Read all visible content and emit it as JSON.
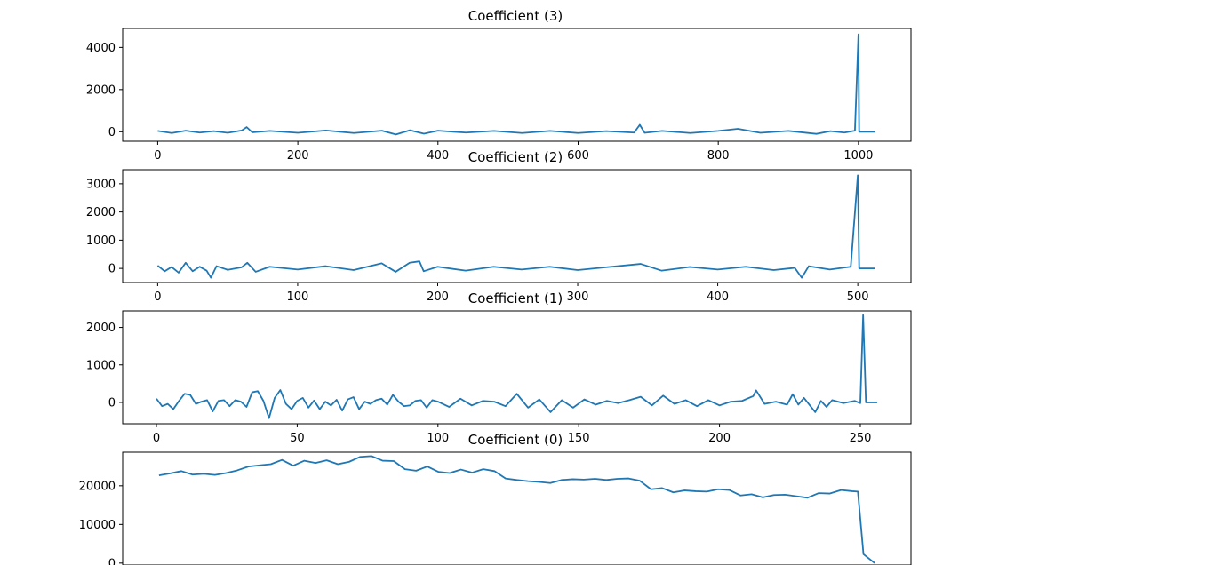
{
  "chart_data": [
    {
      "type": "line",
      "title": "Coefficient (3)",
      "xlabel": "",
      "ylabel": "",
      "xlim": [
        -50,
        1075
      ],
      "ylim": [
        -450,
        4900
      ],
      "xticks": [
        0,
        200,
        400,
        600,
        800,
        1000
      ],
      "xtick_labels": [
        "0",
        "200",
        "400",
        "600",
        "800",
        "1000"
      ],
      "yticks": [
        0,
        2000,
        4000
      ],
      "ytick_labels": [
        "0",
        "2000",
        "4000"
      ],
      "grid": false,
      "legend": "none",
      "series": [
        {
          "color": "#1f77b4",
          "x": [
            0,
            20,
            40,
            60,
            80,
            100,
            120,
            127,
            135,
            160,
            200,
            240,
            280,
            320,
            340,
            360,
            380,
            400,
            440,
            480,
            520,
            560,
            600,
            640,
            680,
            688,
            695,
            720,
            760,
            800,
            828,
            860,
            900,
            940,
            960,
            980,
            995,
            1000,
            1001,
            1005,
            1024
          ],
          "y": [
            40,
            -60,
            50,
            -40,
            30,
            -50,
            60,
            220,
            -30,
            40,
            -50,
            60,
            -60,
            50,
            -130,
            70,
            -90,
            50,
            -40,
            40,
            -60,
            40,
            -60,
            30,
            -40,
            330,
            -50,
            40,
            -60,
            40,
            140,
            -50,
            40,
            -100,
            30,
            -40,
            50,
            4620,
            0,
            0,
            0
          ]
        }
      ]
    },
    {
      "type": "line",
      "title": "Coefficient (2)",
      "xlabel": "",
      "ylabel": "",
      "xlim": [
        -25,
        538
      ],
      "ylim": [
        -500,
        3500
      ],
      "xticks": [
        0,
        100,
        200,
        300,
        400,
        500
      ],
      "xtick_labels": [
        "0",
        "100",
        "200",
        "300",
        "400",
        "500"
      ],
      "yticks": [
        0,
        1000,
        2000,
        3000
      ],
      "ytick_labels": [
        "0",
        "1000",
        "2000",
        "3000"
      ],
      "grid": false,
      "legend": "none",
      "series": [
        {
          "color": "#1f77b4",
          "x": [
            0,
            5,
            10,
            15,
            20,
            25,
            30,
            35,
            38,
            42,
            50,
            60,
            64,
            70,
            80,
            100,
            120,
            140,
            160,
            170,
            180,
            187,
            190,
            200,
            220,
            240,
            260,
            280,
            300,
            320,
            345,
            360,
            380,
            400,
            420,
            440,
            455,
            460,
            465,
            480,
            495,
            500,
            501,
            505,
            512
          ],
          "y": [
            100,
            -100,
            50,
            -150,
            200,
            -100,
            60,
            -80,
            -330,
            80,
            -50,
            40,
            200,
            -120,
            60,
            -40,
            80,
            -60,
            180,
            -120,
            200,
            250,
            -100,
            60,
            -80,
            60,
            -40,
            60,
            -60,
            40,
            160,
            -80,
            50,
            -40,
            60,
            -60,
            20,
            -330,
            80,
            -40,
            60,
            3300,
            0,
            0,
            0
          ]
        }
      ]
    },
    {
      "type": "line",
      "title": "Coefficient (1)",
      "xlabel": "",
      "ylabel": "",
      "xlim": [
        -12,
        268
      ],
      "ylim": [
        -570,
        2440
      ],
      "xticks": [
        0,
        50,
        100,
        150,
        200,
        250
      ],
      "xtick_labels": [
        "0",
        "50",
        "100",
        "150",
        "200",
        "250"
      ],
      "yticks": [
        0,
        1000,
        2000
      ],
      "ytick_labels": [
        "0",
        "1000",
        "2000"
      ],
      "grid": false,
      "legend": "none",
      "series": [
        {
          "color": "#1f77b4",
          "x": [
            0,
            2,
            4,
            6,
            8,
            10,
            12,
            14,
            16,
            18,
            20,
            22,
            24,
            26,
            28,
            30,
            32,
            34,
            36,
            38,
            40,
            42,
            44,
            46,
            48,
            50,
            52,
            54,
            56,
            58,
            60,
            62,
            64,
            66,
            68,
            70,
            72,
            74,
            76,
            78,
            80,
            82,
            84,
            86,
            88,
            90,
            92,
            94,
            96,
            98,
            100,
            104,
            108,
            112,
            116,
            120,
            124,
            128,
            132,
            136,
            140,
            144,
            148,
            152,
            156,
            160,
            164,
            168,
            172,
            176,
            180,
            184,
            188,
            192,
            196,
            200,
            204,
            208,
            212,
            213,
            216,
            220,
            224,
            226,
            228,
            230,
            234,
            236,
            238,
            240,
            244,
            248,
            250,
            251,
            252,
            256
          ],
          "y": [
            100,
            -100,
            -40,
            -180,
            40,
            230,
            200,
            -40,
            20,
            60,
            -240,
            40,
            60,
            -100,
            60,
            20,
            -120,
            270,
            300,
            40,
            -420,
            120,
            330,
            -40,
            -180,
            40,
            120,
            -140,
            50,
            -180,
            20,
            -80,
            70,
            -220,
            80,
            140,
            -180,
            20,
            -40,
            60,
            100,
            -60,
            200,
            20,
            -100,
            -80,
            40,
            60,
            -140,
            60,
            20,
            -120,
            100,
            -80,
            40,
            20,
            -100,
            230,
            -140,
            80,
            -260,
            60,
            -140,
            80,
            -60,
            40,
            -20,
            60,
            150,
            -80,
            180,
            -40,
            60,
            -100,
            60,
            -80,
            20,
            40,
            170,
            320,
            -40,
            20,
            -60,
            220,
            -60,
            120,
            -260,
            40,
            -120,
            60,
            -20,
            40,
            -20,
            2330,
            0,
            0
          ]
        }
      ]
    },
    {
      "type": "line",
      "title": "Coefficient (0)",
      "xlabel": "",
      "ylabel": "",
      "xlim": [
        -6.5,
        134.5
      ],
      "ylim": [
        -500,
        28700
      ],
      "xticks": [],
      "xtick_labels": [],
      "yticks": [
        0,
        10000,
        20000
      ],
      "ytick_labels": [
        "0",
        "10000",
        "20000"
      ],
      "grid": false,
      "legend": "none",
      "series": [
        {
          "color": "#1f77b4",
          "x": [
            0,
            2,
            4,
            6,
            8,
            10,
            12,
            14,
            16,
            18,
            20,
            22,
            24,
            26,
            28,
            30,
            32,
            34,
            36,
            38,
            40,
            42,
            44,
            46,
            48,
            50,
            52,
            54,
            56,
            58,
            60,
            62,
            64,
            66,
            68,
            70,
            72,
            74,
            76,
            78,
            80,
            82,
            84,
            86,
            88,
            90,
            92,
            94,
            96,
            98,
            100,
            102,
            104,
            106,
            108,
            110,
            112,
            114,
            116,
            118,
            120,
            122,
            124,
            125,
            126,
            128
          ],
          "y": [
            22700,
            23200,
            23800,
            22900,
            23100,
            22800,
            23300,
            24000,
            25000,
            25300,
            25600,
            26700,
            25200,
            26500,
            25900,
            26600,
            25600,
            26200,
            27500,
            27700,
            26500,
            26400,
            24300,
            23900,
            25000,
            23600,
            23300,
            24200,
            23400,
            24300,
            23800,
            21900,
            21500,
            21200,
            21000,
            20700,
            21500,
            21700,
            21600,
            21800,
            21500,
            21800,
            21900,
            21300,
            19100,
            19400,
            18300,
            18800,
            18600,
            18500,
            19100,
            18900,
            17500,
            17800,
            17000,
            17600,
            17700,
            17300,
            16900,
            18100,
            18000,
            18900,
            18600,
            18500,
            2300,
            0
          ]
        }
      ]
    }
  ]
}
